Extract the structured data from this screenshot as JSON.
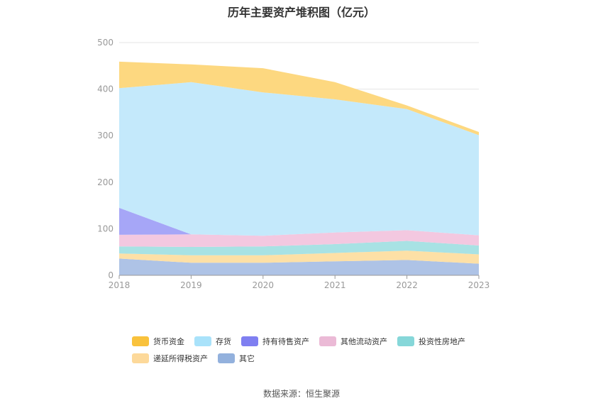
{
  "chart_data": {
    "type": "area",
    "stacked": true,
    "title": "历年主要资产堆积图（亿元）",
    "categories": [
      "2018",
      "2019",
      "2020",
      "2021",
      "2022",
      "2023"
    ],
    "y_ticks": [
      "0",
      "100",
      "200",
      "300",
      "400",
      "500"
    ],
    "ylim": [
      0,
      500
    ],
    "grid": true,
    "legend_position": "bottom",
    "series": [
      {
        "name": "其它",
        "color": "#aec3e6",
        "values": [
          36,
          27,
          27,
          30,
          33,
          25
        ]
      },
      {
        "name": "递延所得税资产",
        "color": "#fde0a6",
        "values": [
          11,
          16,
          16,
          18,
          20,
          20
        ]
      },
      {
        "name": "投资性房地产",
        "color": "#a8e2e4",
        "values": [
          15,
          18,
          19,
          19,
          21,
          19
        ]
      },
      {
        "name": "其他流动资产",
        "color": "#f3c8e0",
        "values": [
          25,
          27,
          23,
          25,
          23,
          22
        ]
      },
      {
        "name": "持有待售资产",
        "color": "#a6a6f7",
        "values": [
          58,
          0,
          0,
          0,
          0,
          0
        ]
      },
      {
        "name": "存货",
        "color": "#c4e9fb",
        "values": [
          257,
          327,
          308,
          286,
          260,
          215
        ]
      },
      {
        "name": "货币资金",
        "color": "#fdd880",
        "values": [
          57,
          38,
          52,
          37,
          8,
          7
        ]
      }
    ]
  },
  "legend": [
    {
      "name": "货币资金",
      "color": "#f9c23c"
    },
    {
      "name": "存货",
      "color": "#a9e2fa"
    },
    {
      "name": "持有待售资产",
      "color": "#7f7ff1"
    },
    {
      "name": "其他流动资产",
      "color": "#ebbad6"
    },
    {
      "name": "投资性房地产",
      "color": "#86d7d9"
    },
    {
      "name": "递延所得税资产",
      "color": "#fdd99a"
    },
    {
      "name": "其它",
      "color": "#93b1dd"
    }
  ],
  "source": "数据来源：恒生聚源"
}
